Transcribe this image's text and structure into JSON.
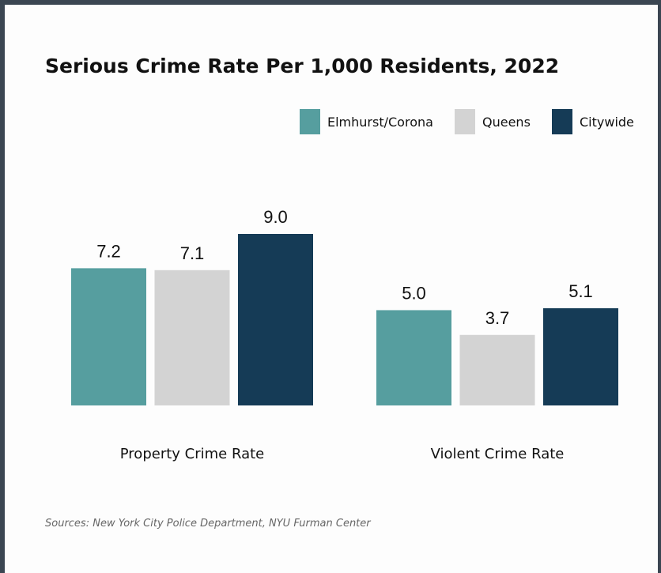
{
  "chart_data": {
    "type": "bar",
    "title": "Serious Crime Rate Per 1,000 Residents, 2022",
    "categories": [
      "Property Crime Rate",
      "Violent Crime Rate"
    ],
    "series": [
      {
        "name": "Elmhurst/Corona",
        "values": [
          7.2,
          5.0
        ],
        "labels": [
          "7.2",
          "5.0"
        ],
        "color": "#569e9f"
      },
      {
        "name": "Queens",
        "values": [
          7.1,
          3.7
        ],
        "labels": [
          "7.1",
          "3.7"
        ],
        "color": "#d3d3d3"
      },
      {
        "name": "Citywide",
        "values": [
          9.0,
          5.1
        ],
        "labels": [
          "9.0",
          "5.1"
        ],
        "color": "#153b56"
      }
    ],
    "ylim": [
      0,
      9.0
    ],
    "grid": false,
    "legend_position": "top-right",
    "xlabel": "",
    "ylabel": "",
    "source": "Sources: New York City Police Department, NYU Furman Center"
  }
}
